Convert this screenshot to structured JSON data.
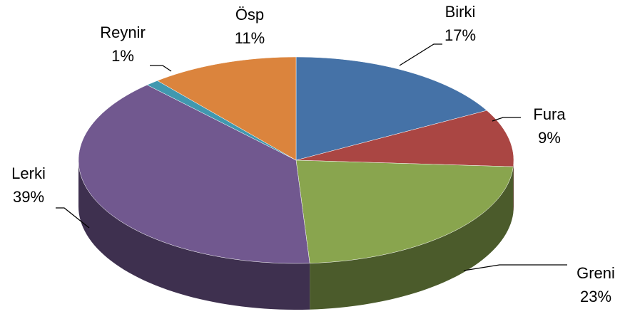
{
  "chart_data": {
    "type": "pie3d",
    "categories": [
      "Birki",
      "Fura",
      "Greni",
      "Lerki",
      "Reynir",
      "Ösp"
    ],
    "values": [
      17,
      9,
      23,
      39,
      1,
      11
    ],
    "value_labels": [
      "17%",
      "9%",
      "23%",
      "39%",
      "1%",
      "11%"
    ],
    "colors": [
      "#4572a7",
      "#aa4643",
      "#89a54e",
      "#71588f",
      "#4198af",
      "#db843d"
    ]
  }
}
